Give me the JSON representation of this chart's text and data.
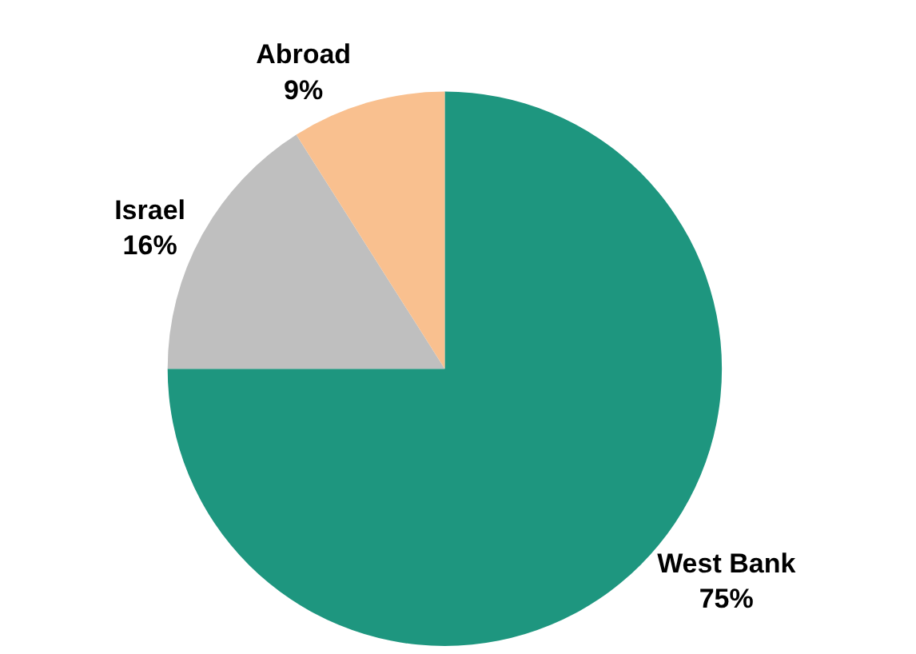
{
  "chart_data": {
    "type": "pie",
    "categories": [
      "West Bank",
      "Israel",
      "Abroad"
    ],
    "values": [
      75,
      16,
      9
    ],
    "value_labels": [
      "75%",
      "16%",
      "9%"
    ],
    "colors": [
      "#1e967f",
      "#bfbfbf",
      "#f9c08f"
    ],
    "legend": false
  }
}
